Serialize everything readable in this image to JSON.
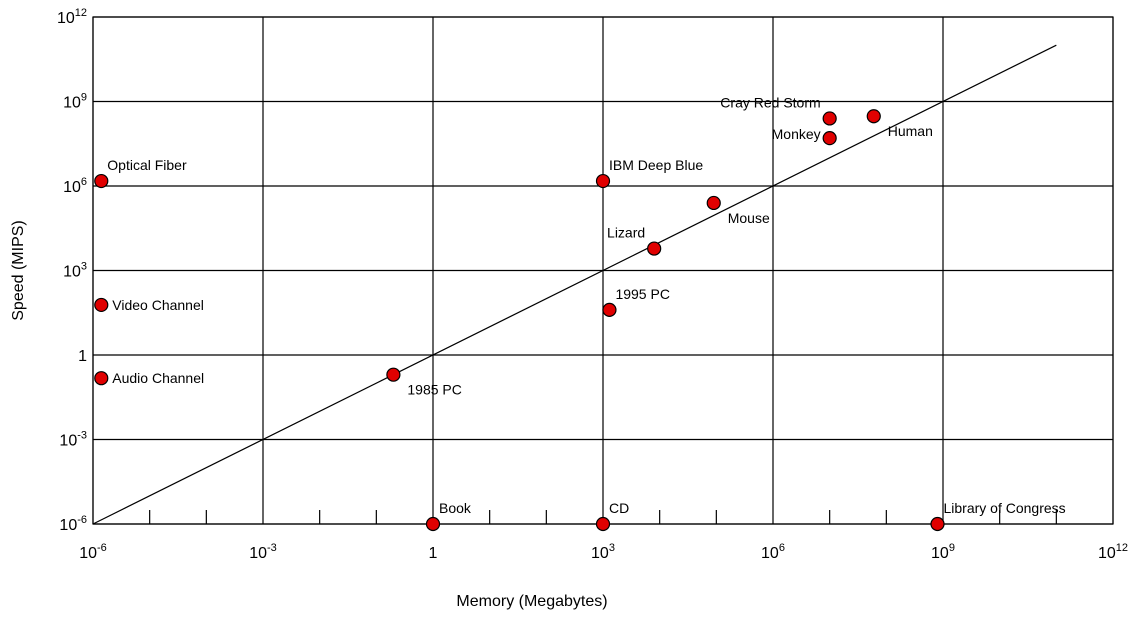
{
  "chart_data": {
    "type": "scatter",
    "title": "",
    "xlabel": "Memory (Megabytes)",
    "ylabel": "Speed (MIPS)",
    "x_scale": "log10",
    "y_scale": "log10",
    "xlim": [
      1e-06,
      1000000000000.0
    ],
    "ylim": [
      1e-06,
      1000000000000.0
    ],
    "grid": true,
    "x_ticks": [
      {
        "value": 1e-06,
        "base": "10",
        "exp": "-6"
      },
      {
        "value": 0.001,
        "base": "10",
        "exp": "-3"
      },
      {
        "value": 1,
        "base": "1",
        "exp": ""
      },
      {
        "value": 1000.0,
        "base": "10",
        "exp": "3"
      },
      {
        "value": 1000000.0,
        "base": "10",
        "exp": "6"
      },
      {
        "value": 1000000000.0,
        "base": "10",
        "exp": "9"
      },
      {
        "value": 1000000000000.0,
        "base": "10",
        "exp": "12"
      }
    ],
    "y_ticks": [
      {
        "value": 1e-06,
        "base": "10",
        "exp": "-6"
      },
      {
        "value": 0.001,
        "base": "10",
        "exp": "-3"
      },
      {
        "value": 1,
        "base": "1",
        "exp": ""
      },
      {
        "value": 1000.0,
        "base": "10",
        "exp": "3"
      },
      {
        "value": 1000000.0,
        "base": "10",
        "exp": "6"
      },
      {
        "value": 1000000000.0,
        "base": "10",
        "exp": "9"
      },
      {
        "value": 1000000000000.0,
        "base": "10",
        "exp": "12"
      }
    ],
    "trend_line": {
      "x": [
        1e-06,
        100000000000.0
      ],
      "y": [
        1e-06,
        100000000000.0
      ]
    },
    "marker_color": "#e00000",
    "points": [
      {
        "label": "Optical Fiber",
        "x": 1.4e-06,
        "y": 1500000.0,
        "label_pos": "right-top"
      },
      {
        "label": "Video Channel",
        "x": 1.4e-06,
        "y": 60,
        "label_pos": "right"
      },
      {
        "label": "Audio Channel",
        "x": 1.4e-06,
        "y": 0.15,
        "label_pos": "right"
      },
      {
        "label": "1985 PC",
        "x": 0.2,
        "y": 0.2,
        "label_pos": "right-bottom"
      },
      {
        "label": "Book",
        "x": 1,
        "y": 1e-06,
        "label_pos": "right-top"
      },
      {
        "label": "CD",
        "x": 1000,
        "y": 1e-06,
        "label_pos": "right-top"
      },
      {
        "label": "Library of Congress",
        "x": 800000000.0,
        "y": 1e-06,
        "label_pos": "right-top"
      },
      {
        "label": "IBM Deep Blue",
        "x": 1000,
        "y": 1500000.0,
        "label_pos": "right-top"
      },
      {
        "label": "1995 PC",
        "x": 1300,
        "y": 40,
        "label_pos": "right-top"
      },
      {
        "label": "Lizard",
        "x": 8000,
        "y": 6000,
        "label_pos": "left-top"
      },
      {
        "label": "Mouse",
        "x": 90000.0,
        "y": 250000.0,
        "label_pos": "right-bottom"
      },
      {
        "label": "Monkey",
        "x": 10000000.0,
        "y": 50000000.0,
        "label_pos": "left"
      },
      {
        "label": "Cray Red Storm",
        "x": 10000000.0,
        "y": 250000000.0,
        "label_pos": "left-top"
      },
      {
        "label": "Human",
        "x": 60000000.0,
        "y": 300000000.0,
        "label_pos": "right-bottom"
      }
    ]
  }
}
